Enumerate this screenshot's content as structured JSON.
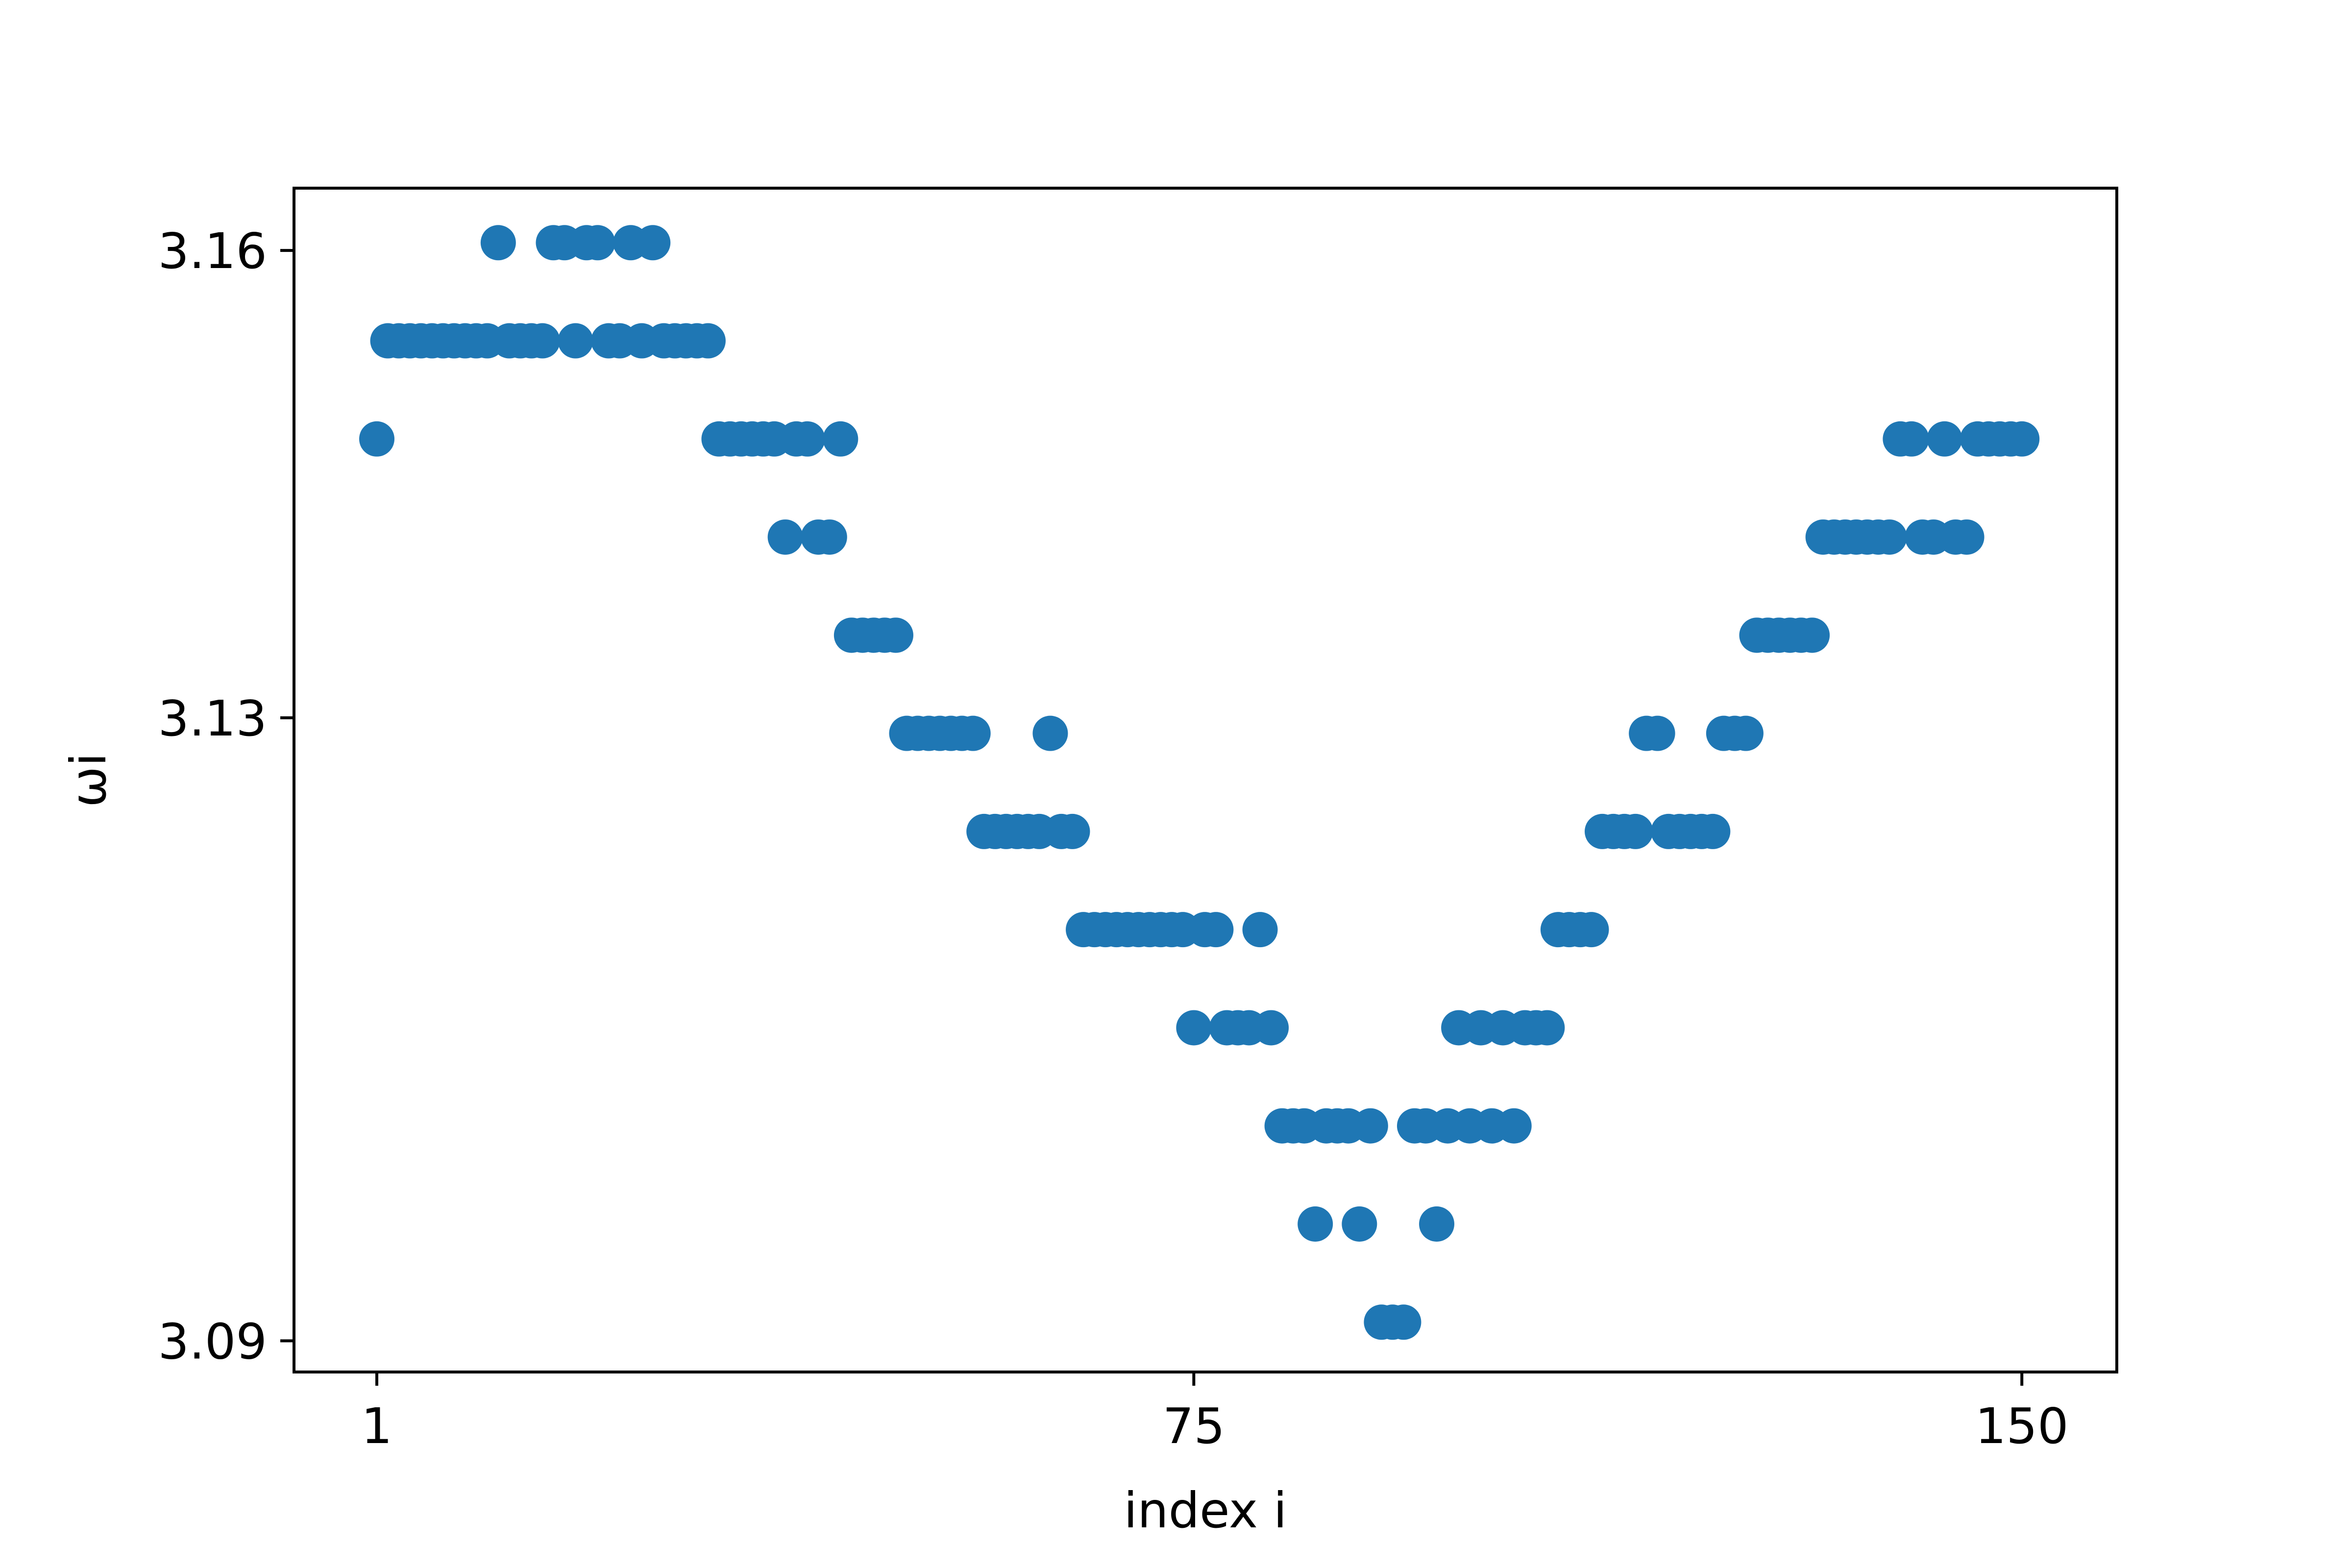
{
  "chart_data": {
    "type": "scatter",
    "xlabel": "index i",
    "ylabel": "ωi",
    "title": "",
    "xticks": [
      1,
      75,
      150
    ],
    "yticks": [
      3.09,
      3.13,
      3.16
    ],
    "xlim": [
      -6.5,
      158.6
    ],
    "ylim": [
      3.088,
      3.164
    ],
    "grid": false,
    "marker_color": "#1f77b4",
    "series": [
      {
        "x": [
          1,
          2,
          3,
          4,
          5,
          6,
          7,
          8,
          9,
          10,
          11,
          12,
          13,
          14,
          15,
          16,
          17,
          18,
          19,
          20,
          21,
          22,
          23,
          24,
          25,
          26,
          27,
          28,
          29,
          30,
          31,
          32,
          33,
          34,
          35,
          36,
          37,
          38,
          39,
          40,
          41,
          42,
          43,
          44,
          45,
          46,
          47,
          48,
          49,
          50,
          51,
          52,
          53,
          54,
          55,
          56,
          57,
          58,
          59,
          60,
          61,
          62,
          63,
          64,
          65,
          66,
          67,
          68,
          69,
          70,
          71,
          72,
          73,
          74,
          75,
          76,
          77,
          78,
          79,
          80,
          81,
          82,
          83,
          84,
          85,
          86,
          87,
          88,
          89,
          90,
          91,
          92,
          93,
          94,
          95,
          96,
          97,
          98,
          99,
          100,
          101,
          102,
          103,
          104,
          105,
          106,
          107,
          108,
          109,
          110,
          111,
          112,
          113,
          114,
          115,
          116,
          117,
          118,
          119,
          120,
          121,
          122,
          123,
          124,
          125,
          126,
          127,
          128,
          129,
          130,
          131,
          132,
          133,
          134,
          135,
          136,
          137,
          138,
          139,
          140,
          141,
          142,
          143,
          144,
          145,
          146,
          147,
          148,
          149,
          150
        ],
        "y": [
          3.1479,
          3.1542,
          3.1542,
          3.1542,
          3.1542,
          3.1542,
          3.1542,
          3.1542,
          3.1542,
          3.1542,
          3.1542,
          3.1605,
          3.1542,
          3.1542,
          3.1542,
          3.1542,
          3.1605,
          3.1605,
          3.1542,
          3.1605,
          3.1605,
          3.1542,
          3.1542,
          3.1605,
          3.1542,
          3.1605,
          3.1542,
          3.1542,
          3.1542,
          3.1542,
          3.1542,
          3.1479,
          3.1479,
          3.1479,
          3.1479,
          3.1479,
          3.1479,
          3.1416,
          3.1479,
          3.1479,
          3.1416,
          3.1416,
          3.1479,
          3.1353,
          3.1353,
          3.1353,
          3.1353,
          3.1353,
          3.129,
          3.129,
          3.129,
          3.129,
          3.129,
          3.129,
          3.129,
          3.1227,
          3.1227,
          3.1227,
          3.1227,
          3.1227,
          3.1227,
          3.129,
          3.1227,
          3.1227,
          3.1164,
          3.1164,
          3.1164,
          3.1164,
          3.1164,
          3.1164,
          3.1164,
          3.1164,
          3.1164,
          3.1164,
          3.1101,
          3.1164,
          3.1164,
          3.1101,
          3.1101,
          3.1101,
          3.1164,
          3.1101,
          3.1038,
          3.1038,
          3.1038,
          3.0975,
          3.1038,
          3.1038,
          3.1038,
          3.0975,
          3.1038,
          3.0912,
          3.0912,
          3.0912,
          3.1038,
          3.1038,
          3.0975,
          3.1038,
          3.1101,
          3.1038,
          3.1101,
          3.1038,
          3.1101,
          3.1038,
          3.1101,
          3.1101,
          3.1101,
          3.1164,
          3.1164,
          3.1164,
          3.1164,
          3.1227,
          3.1227,
          3.1227,
          3.1227,
          3.129,
          3.129,
          3.1227,
          3.1227,
          3.1227,
          3.1227,
          3.1227,
          3.129,
          3.129,
          3.129,
          3.1353,
          3.1353,
          3.1353,
          3.1353,
          3.1353,
          3.1353,
          3.1416,
          3.1416,
          3.1416,
          3.1416,
          3.1416,
          3.1416,
          3.1416,
          3.1479,
          3.1479,
          3.1416,
          3.1416,
          3.1479,
          3.1416,
          3.1416,
          3.1479,
          3.1479,
          3.1479,
          3.1479,
          3.1479
        ]
      }
    ]
  }
}
